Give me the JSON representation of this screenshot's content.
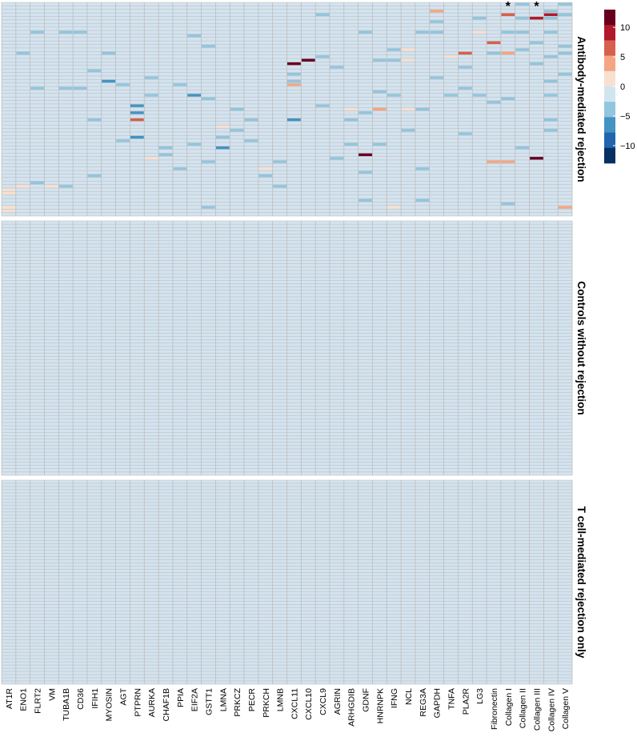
{
  "chart_data": {
    "type": "heatmap",
    "columns": [
      "AT1R",
      "ENO1",
      "FLRT2",
      "VM",
      "TUBA1B",
      "CD36",
      "IFIH1",
      "MYOSIN",
      "AGT",
      "PTPRN",
      "AURKA",
      "CHAF1B",
      "PPIA",
      "EIF2A",
      "GSTT1",
      "LMNA",
      "PRKCZ",
      "PECR",
      "PRKCH",
      "LMNB",
      "CXCL11",
      "CXCL10",
      "CXCL9",
      "AGRIN",
      "ARHGDIB",
      "GDNF",
      "HNRNPK",
      "IFNG",
      "NCL",
      "REG3A",
      "GAPDH",
      "TNFA",
      "PLA2R",
      "LG3",
      "Fibronectin",
      "Collagen I",
      "Collagen II",
      "Collagen III",
      "Collagen IV",
      "Collagen V"
    ],
    "groups": [
      {
        "label": "Antibody-mediated rejection",
        "rows": 61
      },
      {
        "label": "Controls without rejection",
        "rows": 77
      },
      {
        "label": "T cell-mediated rejection only",
        "rows": 64
      }
    ],
    "significance_marks": [
      {
        "column": "Collagen I",
        "symbol": "*"
      },
      {
        "column": "Collagen III",
        "symbol": "*"
      }
    ],
    "legend": {
      "ticks": [
        10,
        5,
        0,
        -5,
        -10
      ],
      "range": [
        -13,
        13
      ],
      "colors": [
        "#053061",
        "#2166ac",
        "#4393c3",
        "#92c5de",
        "#d1e5f0",
        "#f7e0d2",
        "#f4a582",
        "#d6604d",
        "#b2182b",
        "#67001f"
      ]
    },
    "baseline_color": "#d3e3ef",
    "grid_color": "#b9b9b9",
    "highlights": [
      [
        0,
        53,
        5
      ],
      [
        0,
        54,
        5
      ],
      [
        0,
        56,
        4
      ],
      [
        0,
        57,
        4
      ],
      [
        0,
        58,
        5
      ],
      [
        0,
        59,
        5
      ],
      [
        1,
        14,
        3
      ],
      [
        1,
        52,
        5
      ],
      [
        2,
        8,
        3
      ],
      [
        2,
        24,
        3
      ],
      [
        2,
        51,
        3
      ],
      [
        3,
        52,
        5
      ],
      [
        3,
        53,
        4
      ],
      [
        4,
        8,
        3
      ],
      [
        4,
        24,
        3
      ],
      [
        4,
        52,
        3
      ],
      [
        5,
        8,
        3
      ],
      [
        5,
        24,
        3
      ],
      [
        6,
        19,
        3
      ],
      [
        6,
        33,
        3
      ],
      [
        6,
        49,
        3
      ],
      [
        7,
        14,
        3
      ],
      [
        7,
        22,
        2
      ],
      [
        8,
        23,
        3
      ],
      [
        8,
        39,
        3
      ],
      [
        9,
        29,
        2
      ],
      [
        9,
        31,
        2
      ],
      [
        9,
        33,
        7
      ],
      [
        9,
        38,
        2
      ],
      [
        10,
        21,
        3
      ],
      [
        10,
        26,
        3
      ],
      [
        10,
        44,
        5
      ],
      [
        11,
        41,
        3
      ],
      [
        11,
        43,
        3
      ],
      [
        12,
        23,
        3
      ],
      [
        12,
        47,
        3
      ],
      [
        13,
        9,
        3
      ],
      [
        13,
        26,
        2
      ],
      [
        13,
        40,
        3
      ],
      [
        14,
        12,
        3
      ],
      [
        14,
        27,
        3
      ],
      [
        14,
        45,
        3
      ],
      [
        14,
        56,
        4
      ],
      [
        14,
        58,
        3
      ],
      [
        15,
        35,
        5
      ],
      [
        15,
        38,
        3
      ],
      [
        15,
        41,
        2
      ],
      [
        16,
        30,
        3
      ],
      [
        16,
        36,
        3
      ],
      [
        17,
        33,
        3
      ],
      [
        17,
        39,
        3
      ],
      [
        18,
        47,
        5
      ],
      [
        18,
        49,
        3
      ],
      [
        19,
        45,
        3
      ],
      [
        19,
        52,
        3
      ],
      [
        20,
        17,
        9
      ],
      [
        20,
        20,
        3
      ],
      [
        20,
        22,
        3
      ],
      [
        20,
        23,
        6
      ],
      [
        20,
        33,
        2
      ],
      [
        21,
        12,
        4
      ],
      [
        21,
        14,
        4
      ],
      [
        21,
        16,
        9
      ],
      [
        21,
        18,
        4
      ],
      [
        22,
        3,
        3
      ],
      [
        22,
        15,
        3
      ],
      [
        22,
        29,
        3
      ],
      [
        23,
        18,
        3
      ],
      [
        23,
        44,
        3
      ],
      [
        24,
        30,
        5
      ],
      [
        24,
        33,
        3
      ],
      [
        24,
        40,
        3
      ],
      [
        25,
        8,
        3
      ],
      [
        25,
        31,
        3
      ],
      [
        25,
        43,
        9
      ],
      [
        25,
        48,
        3
      ],
      [
        25,
        56,
        3
      ],
      [
        26,
        16,
        3
      ],
      [
        26,
        25,
        3
      ],
      [
        26,
        30,
        6
      ],
      [
        26,
        40,
        3
      ],
      [
        27,
        13,
        3
      ],
      [
        27,
        16,
        3
      ],
      [
        27,
        26,
        3
      ],
      [
        27,
        58,
        5
      ],
      [
        28,
        13,
        5
      ],
      [
        28,
        16,
        5
      ],
      [
        28,
        30,
        5
      ],
      [
        28,
        36,
        3
      ],
      [
        29,
        3,
        4
      ],
      [
        29,
        8,
        3
      ],
      [
        29,
        12,
        4
      ],
      [
        29,
        16,
        4
      ],
      [
        29,
        30,
        3
      ],
      [
        29,
        47,
        3
      ],
      [
        29,
        56,
        3
      ],
      [
        30,
        2,
        6
      ],
      [
        30,
        5,
        3
      ],
      [
        30,
        8,
        3
      ],
      [
        30,
        21,
        3
      ],
      [
        31,
        15,
        5
      ],
      [
        31,
        26,
        3
      ],
      [
        32,
        14,
        7
      ],
      [
        32,
        18,
        3
      ],
      [
        32,
        24,
        3
      ],
      [
        32,
        37,
        3
      ],
      [
        33,
        4,
        3
      ],
      [
        33,
        8,
        5
      ],
      [
        33,
        26,
        3
      ],
      [
        34,
        11,
        7
      ],
      [
        34,
        14,
        3
      ],
      [
        34,
        28,
        3
      ],
      [
        34,
        45,
        6
      ],
      [
        35,
        3,
        7
      ],
      [
        35,
        8,
        3
      ],
      [
        35,
        14,
        6
      ],
      [
        35,
        27,
        3
      ],
      [
        35,
        45,
        6
      ],
      [
        35,
        57,
        3
      ],
      [
        36,
        0,
        3
      ],
      [
        36,
        4,
        3
      ],
      [
        36,
        8,
        3
      ],
      [
        36,
        13,
        3
      ],
      [
        36,
        41,
        3
      ],
      [
        37,
        4,
        8
      ],
      [
        37,
        11,
        3
      ],
      [
        37,
        17,
        3
      ],
      [
        37,
        44,
        9
      ],
      [
        38,
        2,
        3
      ],
      [
        38,
        3,
        8
      ],
      [
        38,
        4,
        3
      ],
      [
        38,
        8,
        3
      ],
      [
        38,
        15,
        3
      ],
      [
        38,
        22,
        3
      ],
      [
        38,
        26,
        3
      ],
      [
        38,
        33,
        3
      ],
      [
        38,
        36,
        3
      ],
      [
        39,
        0,
        3
      ],
      [
        39,
        3,
        3
      ],
      [
        39,
        12,
        3
      ],
      [
        39,
        14,
        3
      ],
      [
        39,
        20,
        3
      ],
      [
        39,
        58,
        6
      ]
    ]
  }
}
